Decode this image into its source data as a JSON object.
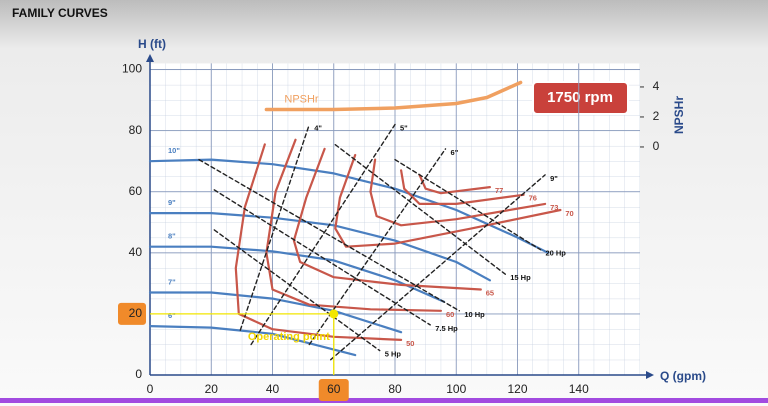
{
  "chart_data": {
    "type": "line",
    "title": "FAMILY CURVES",
    "xlabel": "Q (gpm)",
    "ylabel": "H (ft)",
    "y2label": "NPSHr",
    "annotation": "1750 rpm",
    "xlim": [
      0,
      160
    ],
    "ylim": [
      0,
      102
    ],
    "y2lim": [
      -15.2,
      5.57
    ],
    "xticks": [
      0,
      20,
      40,
      60,
      80,
      100,
      120,
      140
    ],
    "yticks": [
      0,
      20,
      40,
      60,
      80,
      100
    ],
    "y2ticks": [
      0,
      2,
      4
    ],
    "grid": true,
    "operating_point": {
      "x": 60,
      "y": 20,
      "label": "Operating point"
    },
    "series": [
      {
        "name": "10\"",
        "color": "#4a7fc0",
        "style": "solid",
        "label_at": "start",
        "x": [
          0,
          20,
          40,
          60,
          80,
          100,
          120,
          130
        ],
        "values": [
          70,
          70.5,
          69,
          66,
          61,
          54,
          45,
          40
        ]
      },
      {
        "name": "9\"",
        "color": "#4a7fc0",
        "style": "solid",
        "label_at": "start",
        "x": [
          0,
          20,
          40,
          60,
          80,
          100,
          111
        ],
        "values": [
          53,
          53,
          51.5,
          49,
          44,
          37,
          31
        ]
      },
      {
        "name": "8\"",
        "color": "#4a7fc0",
        "style": "solid",
        "label_at": "start",
        "x": [
          0,
          20,
          40,
          60,
          80,
          96
        ],
        "values": [
          42,
          42,
          40.5,
          37.5,
          31,
          24
        ]
      },
      {
        "name": "7\"",
        "color": "#4a7fc0",
        "style": "solid",
        "label_at": "start",
        "x": [
          0,
          20,
          40,
          60,
          82
        ],
        "values": [
          27,
          27,
          25,
          21,
          14
        ]
      },
      {
        "name": "6\"",
        "color": "#4a7fc0",
        "style": "solid",
        "label_at": "start",
        "x": [
          0,
          20,
          40,
          67
        ],
        "values": [
          16,
          15.5,
          13.5,
          6.5
        ]
      },
      {
        "name": "50",
        "color": "#c8574a",
        "style": "solid",
        "label_at": "end",
        "x": [
          37.5,
          31,
          28,
          29,
          40,
          60,
          82
        ],
        "values": [
          75.5,
          55,
          35,
          20,
          15,
          12.5,
          11.5
        ]
      },
      {
        "name": "60",
        "color": "#c8574a",
        "style": "solid",
        "label_at": "end",
        "x": [
          47.5,
          41,
          38,
          40,
          52,
          72,
          95
        ],
        "values": [
          77,
          60,
          40,
          28,
          23,
          21.5,
          21
        ]
      },
      {
        "name": "65",
        "color": "#c8574a",
        "style": "solid",
        "label_at": "end",
        "x": [
          57,
          51,
          47,
          49,
          60,
          82,
          108
        ],
        "values": [
          74,
          58,
          44,
          37,
          32,
          29.5,
          28
        ]
      },
      {
        "name": "70",
        "color": "#c8574a",
        "style": "solid",
        "label_at": "end",
        "x": [
          67,
          62,
          60.5,
          64,
          80,
          105,
          134
        ],
        "values": [
          72,
          58,
          48,
          42,
          43,
          48,
          54
        ]
      },
      {
        "name": "73",
        "color": "#c8574a",
        "style": "solid",
        "label_at": "end",
        "x": [
          73.5,
          72,
          74,
          82,
          100,
          129
        ],
        "values": [
          70.5,
          60,
          52,
          49,
          51,
          56
        ]
      },
      {
        "name": "76",
        "color": "#c8574a",
        "style": "solid",
        "label_at": "end",
        "x": [
          82,
          83,
          88,
          100,
          122
        ],
        "values": [
          67,
          61,
          56,
          56,
          59
        ]
      },
      {
        "name": "77",
        "color": "#c8574a",
        "style": "solid",
        "label_at": "end",
        "x": [
          88,
          90,
          95,
          111
        ],
        "values": [
          65.5,
          61,
          59.5,
          61.5
        ]
      },
      {
        "name": "5 Hp",
        "color": "#222222",
        "style": "dashed",
        "label_at": "end",
        "x": [
          21,
          75
        ],
        "values": [
          47.5,
          8
        ]
      },
      {
        "name": "7.5 Hp",
        "color": "#222222",
        "style": "dashed",
        "label_at": "end",
        "x": [
          21,
          91.5
        ],
        "values": [
          60.6,
          16.4
        ]
      },
      {
        "name": "10 Hp",
        "color": "#222222",
        "style": "dashed",
        "label_at": "end",
        "x": [
          16,
          101
        ],
        "values": [
          70.5,
          21
        ]
      },
      {
        "name": "15 Hp",
        "color": "#222222",
        "style": "dashed",
        "label_at": "end",
        "x": [
          60.5,
          116
        ],
        "values": [
          75.4,
          33
        ]
      },
      {
        "name": "20 Hp",
        "color": "#222222",
        "style": "dashed",
        "label_at": "end",
        "x": [
          80,
          127.5
        ],
        "values": [
          70.5,
          41
        ]
      },
      {
        "name": "4\"",
        "color": "#222222",
        "style": "dashed",
        "label_at": "end",
        "x": [
          29.5,
          52
        ],
        "values": [
          14.7,
          82
        ]
      },
      {
        "name": "5\"",
        "color": "#222222",
        "style": "dashed",
        "label_at": "end",
        "x": [
          33,
          80
        ],
        "values": [
          10,
          82
        ]
      },
      {
        "name": "6\"",
        "color": "#222222",
        "style": "dashed",
        "label_at": "end",
        "x": [
          52,
          96.5
        ],
        "values": [
          10,
          74
        ]
      },
      {
        "name": "9\"",
        "color": "#222222",
        "style": "dashed",
        "label_at": "end",
        "x": [
          59,
          129
        ],
        "values": [
          5,
          65.5
        ]
      },
      {
        "name": "NPSHr",
        "color": "#f0a060",
        "style": "thick",
        "label_at": "start",
        "axis": "y2",
        "x": [
          38,
          60,
          80,
          100,
          110,
          121
        ],
        "values": [
          2.5,
          2.5,
          2.6,
          2.9,
          3.3,
          4.3
        ]
      }
    ]
  }
}
